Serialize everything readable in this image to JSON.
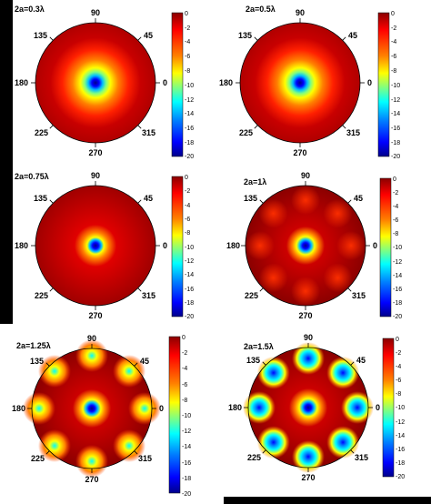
{
  "colors": {
    "page_background": "#000000",
    "panel_background": "#ffffff",
    "colormap": [
      "#00008b",
      "#0000ff",
      "#0080ff",
      "#00ffff",
      "#80ff80",
      "#ffff00",
      "#ff8000",
      "#ff0000",
      "#8b0000"
    ]
  },
  "panels": [
    {
      "id": "p1",
      "label": "2a=0.3λ",
      "angles": {
        "a90": "90",
        "a45": "45",
        "a0": "0",
        "a315": "315",
        "a270": "270",
        "a225": "225",
        "a180": "180",
        "a135": "135"
      },
      "colorbar_ticks": [
        "0",
        "-2",
        "-4",
        "-6",
        "-8",
        "-10",
        "-12",
        "-14",
        "-16",
        "-18",
        "-20"
      ],
      "pattern": {
        "lobes": 0
      }
    },
    {
      "id": "p2",
      "label": "2a=0.5λ",
      "angles": {
        "a90": "90",
        "a45": "45",
        "a0": "0",
        "a315": "315",
        "a270": "270",
        "a225": "225",
        "a180": "180",
        "a135": "135"
      },
      "colorbar_ticks": [
        "0",
        "-2",
        "-4",
        "-6",
        "-8",
        "-10",
        "-12",
        "-14",
        "-16",
        "-18",
        "-20"
      ],
      "pattern": {
        "lobes": 0
      }
    },
    {
      "id": "p3",
      "label": "2a=0.75λ",
      "angles": {
        "a90": "90",
        "a45": "45",
        "a0": "0",
        "a315": "315",
        "a270": "270",
        "a225": "225",
        "a180": "180",
        "a135": "135"
      },
      "colorbar_ticks": [
        "0",
        "-2",
        "-4",
        "-6",
        "-8",
        "-10",
        "-12",
        "-14",
        "-16",
        "-18",
        "-20"
      ],
      "pattern": {
        "lobes": 0
      }
    },
    {
      "id": "p4",
      "label": "2a=1λ",
      "angles": {
        "a90": "90",
        "a45": "45",
        "a0": "0",
        "a315": "315",
        "a270": "270",
        "a225": "225",
        "a180": "180",
        "a135": "135"
      },
      "colorbar_ticks": [
        "0",
        "-2",
        "-4",
        "-6",
        "-8",
        "-10",
        "-12",
        "-14",
        "-16",
        "-18",
        "-20"
      ],
      "pattern": {
        "lobes": 8
      }
    },
    {
      "id": "p5",
      "label": "2a=1.25λ",
      "angles": {
        "a90": "90",
        "a45": "45",
        "a0": "0",
        "a315": "315",
        "a270": "270",
        "a225": "225",
        "a180": "180",
        "a135": "135"
      },
      "colorbar_ticks": [
        "0",
        "-2",
        "-4",
        "-6",
        "-8",
        "-10",
        "-12",
        "-14",
        "-16",
        "-18",
        "-20"
      ],
      "pattern": {
        "lobes": 8
      }
    },
    {
      "id": "p6",
      "label": "2a=1.5λ",
      "angles": {
        "a90": "90",
        "a45": "45",
        "a0": "0",
        "a315": "315",
        "a270": "270",
        "a225": "225",
        "a180": "180",
        "a135": "135"
      },
      "colorbar_ticks": [
        "0",
        "-2",
        "-4",
        "-6",
        "-8",
        "-10",
        "-12",
        "-14",
        "-16",
        "-18",
        "-20"
      ],
      "pattern": {
        "lobes": 8
      }
    }
  ]
}
